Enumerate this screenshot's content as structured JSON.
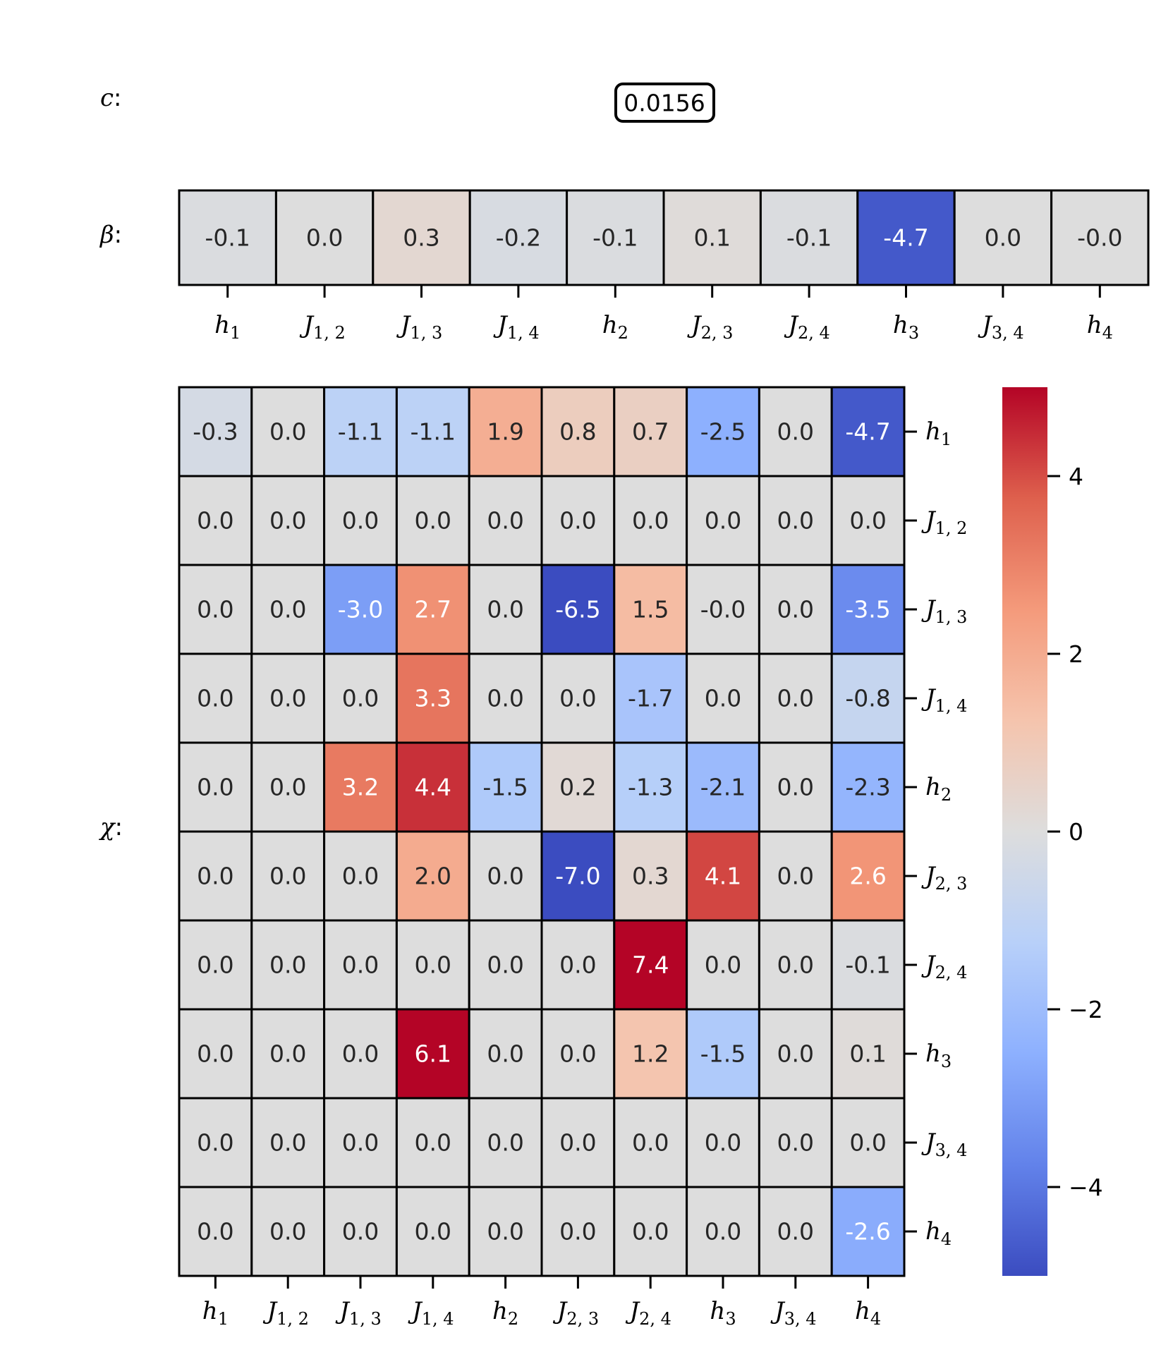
{
  "chart_data": {
    "type": "heatmap",
    "colormap": "coolwarm",
    "vmin": -5,
    "vmax": 5,
    "c": {
      "label": "c",
      "value": "0.0156"
    },
    "beta": {
      "label": "β",
      "values": [
        -0.1,
        0.0,
        0.3,
        -0.2,
        -0.1,
        0.1,
        -0.1,
        -4.7,
        0.0,
        -0.0
      ],
      "value_labels": [
        "-0.1",
        "0.0",
        "0.3",
        "-0.2",
        "-0.1",
        "0.1",
        "-0.1",
        "-4.7",
        "0.0",
        "-0.0"
      ]
    },
    "chi": {
      "label": "χ",
      "values": [
        [
          -0.3,
          0.0,
          -1.1,
          -1.1,
          1.9,
          0.8,
          0.7,
          -2.5,
          0.0,
          -4.7
        ],
        [
          0.0,
          0.0,
          0.0,
          0.0,
          0.0,
          0.0,
          0.0,
          0.0,
          0.0,
          0.0
        ],
        [
          0.0,
          0.0,
          -3.0,
          2.7,
          0.0,
          -6.5,
          1.5,
          -0.0,
          0.0,
          -3.5
        ],
        [
          0.0,
          0.0,
          0.0,
          3.3,
          0.0,
          0.0,
          -1.7,
          0.0,
          0.0,
          -0.8
        ],
        [
          0.0,
          0.0,
          3.2,
          4.4,
          -1.5,
          0.2,
          -1.3,
          -2.1,
          0.0,
          -2.3
        ],
        [
          0.0,
          0.0,
          0.0,
          2.0,
          0.0,
          -7.0,
          0.3,
          4.1,
          0.0,
          2.6
        ],
        [
          0.0,
          0.0,
          0.0,
          0.0,
          0.0,
          0.0,
          7.4,
          0.0,
          0.0,
          -0.1
        ],
        [
          0.0,
          0.0,
          0.0,
          6.1,
          0.0,
          0.0,
          1.2,
          -1.5,
          0.0,
          0.1
        ],
        [
          0.0,
          0.0,
          0.0,
          0.0,
          0.0,
          0.0,
          0.0,
          0.0,
          0.0,
          0.0
        ],
        [
          0.0,
          0.0,
          0.0,
          0.0,
          0.0,
          0.0,
          0.0,
          0.0,
          0.0,
          -2.6
        ]
      ],
      "value_labels": [
        [
          "-0.3",
          "0.0",
          "-1.1",
          "-1.1",
          "1.9",
          "0.8",
          "0.7",
          "-2.5",
          "0.0",
          "-4.7"
        ],
        [
          "0.0",
          "0.0",
          "0.0",
          "0.0",
          "0.0",
          "0.0",
          "0.0",
          "0.0",
          "0.0",
          "0.0"
        ],
        [
          "0.0",
          "0.0",
          "-3.0",
          "2.7",
          "0.0",
          "-6.5",
          "1.5",
          "-0.0",
          "0.0",
          "-3.5"
        ],
        [
          "0.0",
          "0.0",
          "0.0",
          "3.3",
          "0.0",
          "0.0",
          "-1.7",
          "0.0",
          "0.0",
          "-0.8"
        ],
        [
          "0.0",
          "0.0",
          "3.2",
          "4.4",
          "-1.5",
          "0.2",
          "-1.3",
          "-2.1",
          "0.0",
          "-2.3"
        ],
        [
          "0.0",
          "0.0",
          "0.0",
          "2.0",
          "0.0",
          "-7.0",
          "0.3",
          "4.1",
          "0.0",
          "2.6"
        ],
        [
          "0.0",
          "0.0",
          "0.0",
          "0.0",
          "0.0",
          "0.0",
          "7.4",
          "0.0",
          "0.0",
          "-0.1"
        ],
        [
          "0.0",
          "0.0",
          "0.0",
          "6.1",
          "0.0",
          "0.0",
          "1.2",
          "-1.5",
          "0.0",
          "0.1"
        ],
        [
          "0.0",
          "0.0",
          "0.0",
          "0.0",
          "0.0",
          "0.0",
          "0.0",
          "0.0",
          "0.0",
          "0.0"
        ],
        [
          "0.0",
          "0.0",
          "0.0",
          "0.0",
          "0.0",
          "0.0",
          "0.0",
          "0.0",
          "0.0",
          "-2.6"
        ]
      ]
    },
    "labels": [
      {
        "base": "h",
        "sub": "1"
      },
      {
        "base": "J",
        "sub": "1, 2"
      },
      {
        "base": "J",
        "sub": "1, 3"
      },
      {
        "base": "J",
        "sub": "1, 4"
      },
      {
        "base": "h",
        "sub": "2"
      },
      {
        "base": "J",
        "sub": "2, 3"
      },
      {
        "base": "J",
        "sub": "2, 4"
      },
      {
        "base": "h",
        "sub": "3"
      },
      {
        "base": "J",
        "sub": "3, 4"
      },
      {
        "base": "h",
        "sub": "4"
      }
    ],
    "colorbar": {
      "ticks": [
        4,
        2,
        0,
        -2,
        -4
      ],
      "tick_labels": [
        "4",
        "2",
        "0",
        "−2",
        "−4"
      ]
    },
    "grid": true
  }
}
